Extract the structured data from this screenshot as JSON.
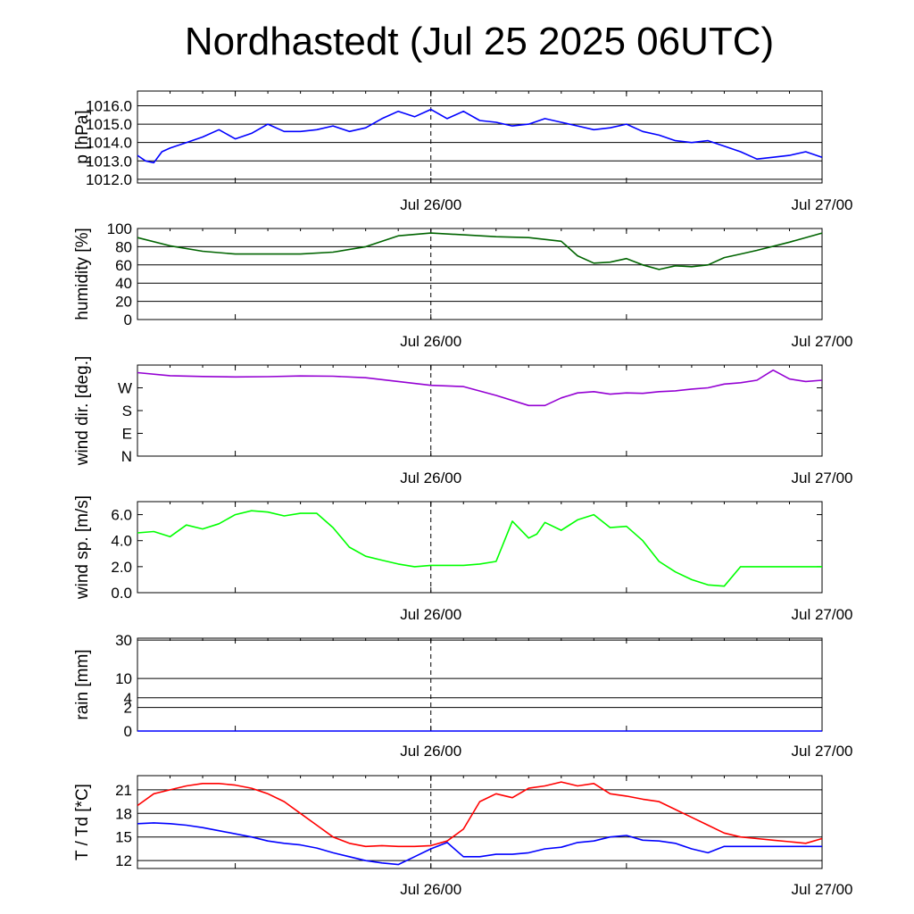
{
  "title": "Nordhastedt (Jul 25 2025 06UTC)",
  "colors": {
    "pressure": "#0000ff",
    "humidity": "#006400",
    "wind_dir": "#9400d3",
    "wind_speed": "#00ff00",
    "rain": "#0000ff",
    "temperature": "#ff0000",
    "dewpoint": "#0000ff",
    "grid": "#000000"
  },
  "chart_data": [
    {
      "type": "line",
      "ylabel": "p [hPa]",
      "x_start": "2025-07-25 06:00",
      "x_end": "2025-07-27 00:00",
      "xticks": [
        "Jul 26/00",
        "Jul 27/00"
      ],
      "ylim": [
        1011.8,
        1016.8
      ],
      "yticks": [
        "1012.0",
        "1013.0",
        "1014.0",
        "1015.0",
        "1016.0"
      ],
      "grid": "horizontal",
      "series": [
        {
          "x_hours": [
            0,
            0.5,
            1,
            1.5,
            2,
            3,
            4,
            5,
            6,
            7,
            8,
            9,
            10,
            11,
            12,
            13,
            14,
            15,
            16,
            17,
            18,
            19,
            20,
            21,
            22,
            23,
            24,
            25,
            26,
            27,
            28,
            29,
            30,
            31,
            32,
            33,
            34,
            35,
            36,
            37,
            38,
            39,
            40,
            41,
            42
          ],
          "values": [
            1013.3,
            1013.0,
            1012.9,
            1013.5,
            1013.7,
            1014.0,
            1014.3,
            1014.7,
            1014.2,
            1014.5,
            1015.0,
            1014.6,
            1014.6,
            1014.7,
            1014.9,
            1014.6,
            1014.8,
            1015.3,
            1015.7,
            1015.4,
            1015.8,
            1015.3,
            1015.7,
            1015.2,
            1015.1,
            1014.9,
            1015.0,
            1015.3,
            1015.1,
            1014.9,
            1014.7,
            1014.8,
            1015.0,
            1014.6,
            1014.4,
            1014.1,
            1014.0,
            1014.1,
            1013.8,
            1013.5,
            1013.1,
            1013.2,
            1013.3,
            1013.5,
            1013.2
          ]
        }
      ]
    },
    {
      "type": "line",
      "ylabel": "humidity [%]",
      "x_start": "2025-07-25 06:00",
      "x_end": "2025-07-27 00:00",
      "xticks": [
        "Jul 26/00",
        "Jul 27/00"
      ],
      "ylim": [
        0,
        100
      ],
      "yticks": [
        "0",
        "20",
        "40",
        "60",
        "80",
        "100"
      ],
      "grid": "horizontal",
      "series": [
        {
          "x_hours": [
            0,
            2,
            4,
            6,
            8,
            10,
            12,
            14,
            16,
            18,
            20,
            22,
            24,
            26,
            27,
            28,
            29,
            30,
            31,
            32,
            33,
            34,
            35,
            36,
            37,
            38,
            40,
            42
          ],
          "values": [
            90,
            81,
            75,
            72,
            72,
            72,
            74,
            80,
            92,
            95,
            93,
            91,
            90,
            86,
            70,
            62,
            63,
            67,
            60,
            55,
            59,
            58,
            60,
            68,
            72,
            76,
            85,
            95
          ]
        }
      ]
    },
    {
      "type": "line",
      "ylabel": "wind dir. [deg.]",
      "x_start": "2025-07-25 06:00",
      "x_end": "2025-07-27 00:00",
      "xticks": [
        "Jul 26/00",
        "Jul 27/00"
      ],
      "ylim": [
        0,
        360
      ],
      "yticks": [
        "N",
        "E",
        "S",
        "W"
      ],
      "series": [
        {
          "x_hours": [
            0,
            2,
            4,
            6,
            8,
            10,
            12,
            14,
            16,
            18,
            20,
            22,
            24,
            25,
            26,
            27,
            28,
            29,
            30,
            31,
            32,
            33,
            34,
            35,
            36,
            37,
            38,
            39,
            40,
            41,
            42
          ],
          "values": [
            330,
            318,
            315,
            313,
            314,
            317,
            316,
            310,
            295,
            280,
            275,
            240,
            200,
            200,
            230,
            250,
            255,
            245,
            250,
            248,
            255,
            258,
            265,
            270,
            285,
            290,
            300,
            340,
            305,
            295,
            300
          ]
        }
      ]
    },
    {
      "type": "line",
      "ylabel": "wind sp. [m/s]",
      "x_start": "2025-07-25 06:00",
      "x_end": "2025-07-27 00:00",
      "xticks": [
        "Jul 26/00",
        "Jul 27/00"
      ],
      "ylim": [
        0,
        7
      ],
      "yticks": [
        "0.0",
        "2.0",
        "4.0",
        "6.0"
      ],
      "series": [
        {
          "x_hours": [
            0,
            1,
            2,
            3,
            4,
            5,
            6,
            7,
            8,
            9,
            10,
            11,
            12,
            13,
            14,
            15,
            16,
            17,
            18,
            19,
            20,
            21,
            22,
            23,
            24,
            24.5,
            25,
            26,
            27,
            28,
            29,
            30,
            31,
            32,
            33,
            34,
            35,
            36,
            37,
            38,
            39,
            40,
            41,
            42
          ],
          "values": [
            4.6,
            4.7,
            4.3,
            5.2,
            4.9,
            5.3,
            6.0,
            6.3,
            6.2,
            5.9,
            6.1,
            6.1,
            5.0,
            3.5,
            2.8,
            2.5,
            2.2,
            2.0,
            2.1,
            2.1,
            2.1,
            2.2,
            2.4,
            5.5,
            4.2,
            4.5,
            5.4,
            4.8,
            5.6,
            6.0,
            5.0,
            5.1,
            4.0,
            2.4,
            1.6,
            1.0,
            0.6,
            0.5,
            2.0,
            2.0,
            2.0,
            2.0,
            2.0,
            2.0
          ]
        }
      ]
    },
    {
      "type": "line",
      "ylabel": "rain [mm]",
      "x_start": "2025-07-25 06:00",
      "x_end": "2025-07-27 00:00",
      "xticks": [
        "Jul 26/00",
        "Jul 27/00"
      ],
      "yticks": [
        "0",
        "2",
        "4",
        "10",
        "30"
      ],
      "series": [
        {
          "x_hours": [
            0,
            42
          ],
          "values": [
            0,
            0
          ]
        }
      ]
    },
    {
      "type": "line",
      "ylabel": "T / Td [*C]",
      "x_start": "2025-07-25 06:00",
      "x_end": "2025-07-27 00:00",
      "xticks": [
        "Jul 26/00",
        "Jul 27/00"
      ],
      "ylim": [
        11,
        22.8
      ],
      "yticks": [
        "12",
        "15",
        "18",
        "21"
      ],
      "grid": "horizontal",
      "series": [
        {
          "x_hours": [
            0,
            1,
            2,
            3,
            4,
            5,
            6,
            7,
            8,
            9,
            10,
            11,
            12,
            13,
            14,
            15,
            16,
            17,
            18,
            19,
            20,
            21,
            22,
            23,
            24,
            25,
            26,
            27,
            28,
            29,
            30,
            31,
            32,
            33,
            34,
            35,
            36,
            37,
            38,
            39,
            40,
            41,
            42
          ],
          "values": [
            19.0,
            20.5,
            21.0,
            21.5,
            21.8,
            21.8,
            21.6,
            21.2,
            20.5,
            19.5,
            18.0,
            16.5,
            15.0,
            14.2,
            13.8,
            13.9,
            13.8,
            13.8,
            13.9,
            14.5,
            16.0,
            19.5,
            20.5,
            20.0,
            21.2,
            21.5,
            22.0,
            21.5,
            21.8,
            20.5,
            20.2,
            19.8,
            19.5,
            18.5,
            17.5,
            16.5,
            15.5,
            15.0,
            14.8,
            14.6,
            14.4,
            14.2,
            14.8
          ]
        },
        {
          "x_hours": [
            0,
            1,
            2,
            3,
            4,
            5,
            6,
            7,
            8,
            9,
            10,
            11,
            12,
            13,
            14,
            15,
            16,
            17,
            18,
            19,
            20,
            21,
            22,
            23,
            24,
            25,
            26,
            27,
            28,
            29,
            30,
            31,
            32,
            33,
            34,
            35,
            36,
            37,
            38,
            39,
            40,
            41,
            42
          ],
          "values": [
            16.7,
            16.8,
            16.7,
            16.5,
            16.2,
            15.8,
            15.4,
            15.0,
            14.5,
            14.2,
            14.0,
            13.6,
            13.0,
            12.5,
            12.0,
            11.7,
            11.5,
            12.5,
            13.5,
            14.3,
            12.5,
            12.5,
            12.8,
            12.8,
            13.0,
            13.5,
            13.7,
            14.3,
            14.5,
            15.0,
            15.2,
            14.6,
            14.5,
            14.2,
            13.5,
            13.0,
            13.8,
            13.8,
            13.8,
            13.8,
            13.8,
            13.8,
            13.8
          ]
        }
      ]
    }
  ]
}
